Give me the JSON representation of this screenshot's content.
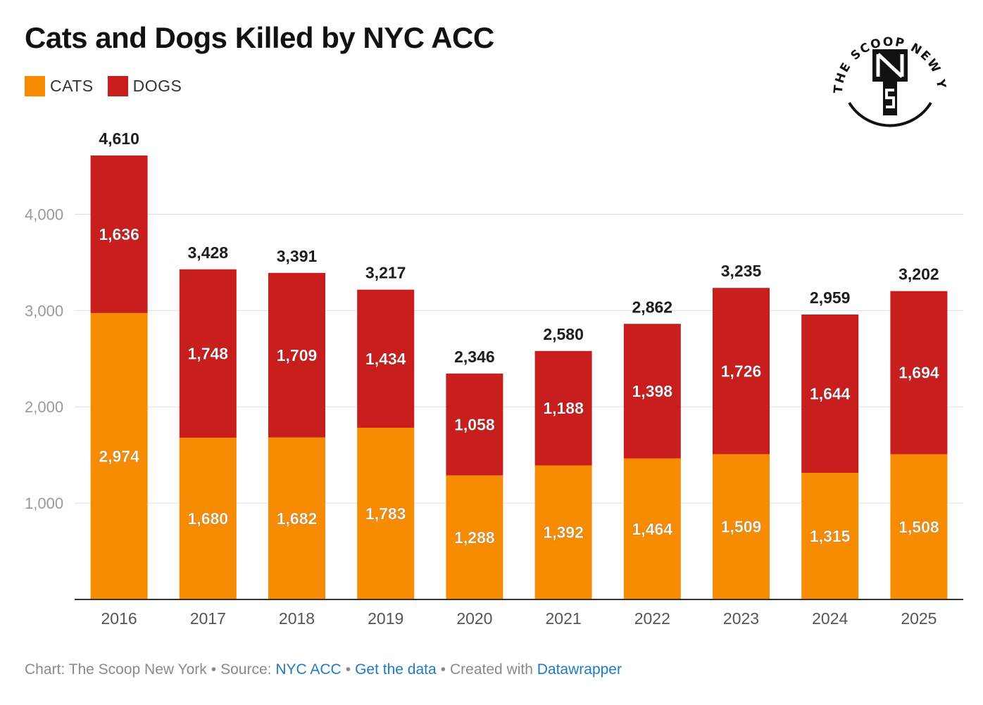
{
  "header": {
    "title": "Cats and Dogs Killed by NYC ACC"
  },
  "legend": {
    "cats_label": "CATS",
    "dogs_label": "DOGS"
  },
  "colors": {
    "cats": "#f78c02",
    "dogs": "#c81e1e",
    "total_label": "#1d1d1d",
    "grid": "#dddddd",
    "axis": "#333333"
  },
  "logo": {
    "text": "THE SCOOP NEW YORK",
    "icon": "nts-monogram-icon"
  },
  "footer": {
    "chart_prefix": "Chart: The Scoop New York",
    "source_prefix": "Source:",
    "source_link": "NYC ACC",
    "data_link": "Get the data",
    "created_prefix": "Created with",
    "created_link": "Datawrapper"
  },
  "chart_data": {
    "type": "bar",
    "stacked": true,
    "title": "Cats and Dogs Killed by NYC ACC",
    "categories": [
      "2016",
      "2017",
      "2018",
      "2019",
      "2020",
      "2021",
      "2022",
      "2023",
      "2024",
      "2025"
    ],
    "series": [
      {
        "name": "CATS",
        "values": [
          2974,
          1680,
          1682,
          1783,
          1288,
          1392,
          1464,
          1509,
          1315,
          1508
        ]
      },
      {
        "name": "DOGS",
        "values": [
          1636,
          1748,
          1709,
          1434,
          1058,
          1188,
          1398,
          1726,
          1644,
          1694
        ]
      }
    ],
    "totals": [
      4610,
      3428,
      3391,
      3217,
      2346,
      2580,
      2862,
      3235,
      2959,
      3202
    ],
    "yticks": [
      1000,
      2000,
      3000,
      4000
    ],
    "ytick_labels": [
      "1,000",
      "2,000",
      "3,000",
      "4,000"
    ],
    "ylim": [
      0,
      4610
    ],
    "grid": true,
    "legend_position": "top-left"
  }
}
